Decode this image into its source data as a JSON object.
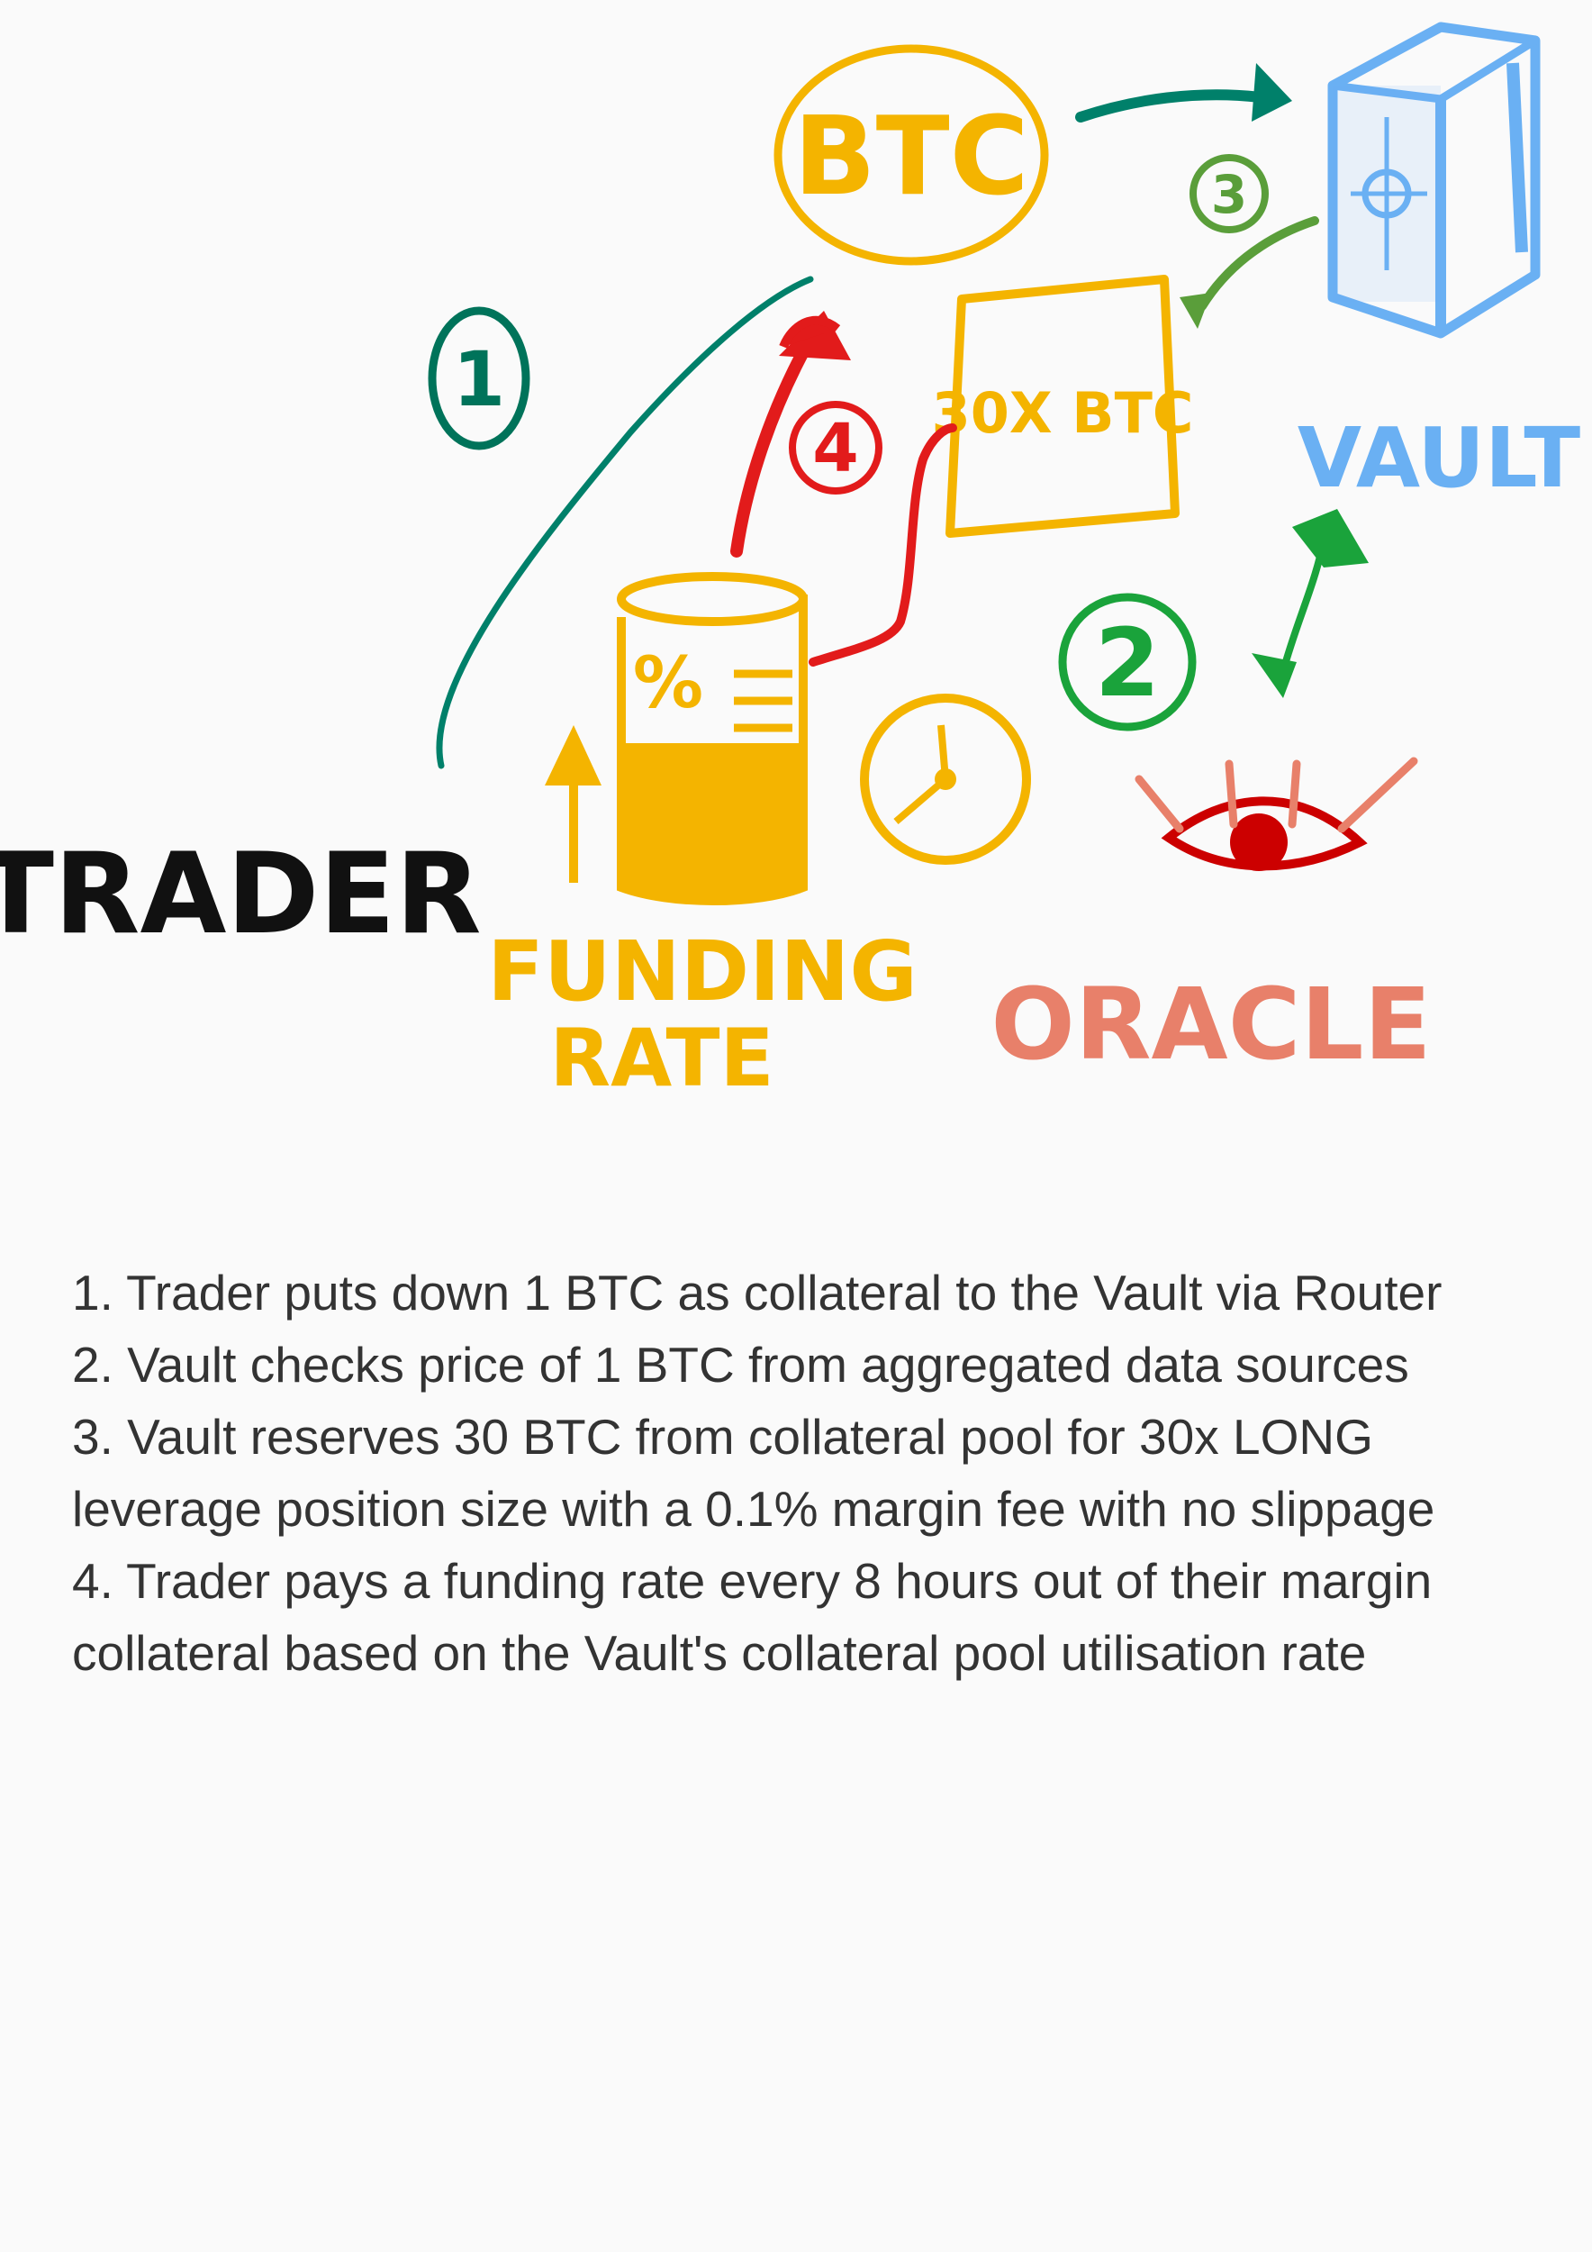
{
  "diagram": {
    "labels": {
      "btc": "BTC",
      "position": "30X BTC",
      "vault": "VAULT",
      "trader": "TRADER",
      "funding_line1": "FUNDING",
      "funding_line2": "RATE",
      "oracle": "ORACLE",
      "percent": "%"
    },
    "steps": [
      "1",
      "2",
      "3",
      "4"
    ],
    "colors": {
      "btc": "#f4b400",
      "vault": "#6ab0f3",
      "trader": "#111111",
      "oracle": "#e8806a",
      "eye": "#cc0000",
      "step1": "#00735a",
      "step2": "#1aa33b",
      "step3": "#5a9e3a",
      "step4": "#e21b1b",
      "arrow_teal": "#00806a"
    }
  },
  "notes": [
    "1. Trader puts down 1 BTC as collateral to the Vault via Router",
    "2. Vault checks price of 1 BTC from aggregated data sources",
    "3. Vault reserves 30 BTC from collateral pool for 30x LONG leverage position size with a 0.1% margin fee with no slippage",
    "4. Trader pays a funding rate every 8 hours out of their margin collateral based on the Vault's collateral pool utilisation rate"
  ]
}
